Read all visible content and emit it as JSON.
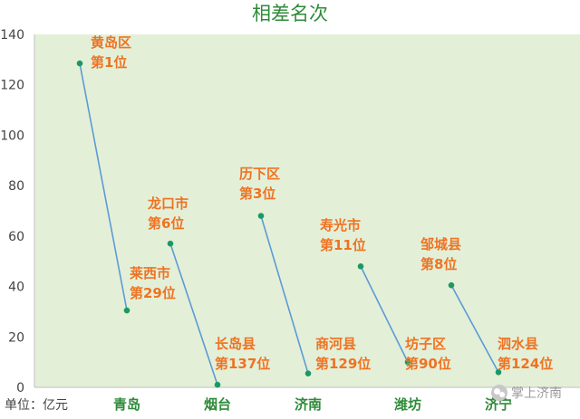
{
  "chart_data": {
    "type": "line",
    "title": "相差名次",
    "unit_label": "单位：亿元",
    "ylim": [
      0,
      140
    ],
    "yticks": [
      0,
      20,
      40,
      60,
      80,
      100,
      120,
      140
    ],
    "grid": false,
    "categories": [
      "青岛",
      "烟台",
      "济南",
      "潍坊",
      "济宁"
    ],
    "series": [
      {
        "category": "青岛",
        "points": [
          {
            "name": "黄岛区",
            "rank": "第1位",
            "value": 128.5
          },
          {
            "name": "莱西市",
            "rank": "第29位",
            "value": 30.5
          }
        ]
      },
      {
        "category": "烟台",
        "points": [
          {
            "name": "龙口市",
            "rank": "第6位",
            "value": 57
          },
          {
            "name": "长岛县",
            "rank": "第137位",
            "value": 1
          }
        ]
      },
      {
        "category": "济南",
        "points": [
          {
            "name": "历下区",
            "rank": "第3位",
            "value": 68
          },
          {
            "name": "商河县",
            "rank": "第129位",
            "value": 5.5
          }
        ]
      },
      {
        "category": "潍坊",
        "points": [
          {
            "name": "寿光市",
            "rank": "第11位",
            "value": 48
          },
          {
            "name": "坊子区",
            "rank": "第90位",
            "value": 10
          }
        ]
      },
      {
        "category": "济宁",
        "points": [
          {
            "name": "邹城县",
            "rank": "第8位",
            "value": 40.5
          },
          {
            "name": "泗水县",
            "rank": "第124位",
            "value": 6
          }
        ]
      }
    ],
    "colors": {
      "plot_background": "#e4efd8",
      "line": "#5b9bd5",
      "marker": "#1a9a62",
      "label": "#ee7322",
      "category": "#2e8b3a",
      "title": "#2e8b3a",
      "axis_text": "#444444"
    }
  },
  "watermark": {
    "text": "掌上济南",
    "icon": "wechat-icon"
  }
}
